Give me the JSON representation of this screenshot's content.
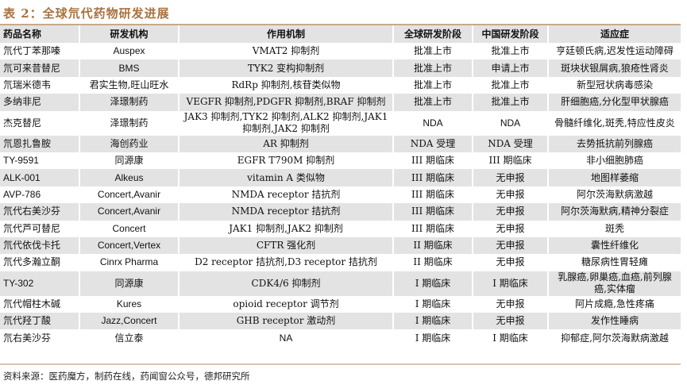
{
  "title": "表 2：全球氘代药物研发进展",
  "columns": [
    "药品名称",
    "研发机构",
    "作用机制",
    "全球研发阶段",
    "中国研发阶段",
    "适应症"
  ],
  "rows": [
    [
      "氘代丁苯那嗪",
      "Auspex",
      "VMAT2 抑制剂",
      "批准上市",
      "批准上市",
      "亨廷顿氏病,迟发性运动障碍"
    ],
    [
      "氘可来昔替尼",
      "BMS",
      "TYK2 变构抑制剂",
      "批准上市",
      "申请上市",
      "斑块状银屑病,狼疮性肾炎"
    ],
    [
      "氘瑞米德韦",
      "君实生物,旺山旺水",
      "RdRp 抑制剂,核苷类似物",
      "批准上市",
      "批准上市",
      "新型冠状病毒感染"
    ],
    [
      "多纳非尼",
      "泽璟制药",
      "VEGFR 抑制剂,PDGFR 抑制剂,BRAF 抑制剂",
      "批准上市",
      "批准上市",
      "肝细胞癌,分化型甲状腺癌"
    ],
    [
      "杰克替尼",
      "泽璟制药",
      "JAK3 抑制剂,TYK2 抑制剂,ALK2 抑制剂,JAK1 抑制剂,JAK2 抑制剂",
      "NDA",
      "NDA",
      "骨髓纤维化,斑秃,特应性皮炎"
    ],
    [
      "氘恩扎鲁胺",
      "海创药业",
      "AR 抑制剂",
      "NDA 受理",
      "NDA 受理",
      "去势抵抗前列腺癌"
    ],
    [
      "TY-9591",
      "同源康",
      "EGFR T790M 抑制剂",
      "III 期临床",
      "III 期临床",
      "非小细胞肺癌"
    ],
    [
      "ALK-001",
      "Alkeus",
      "vitamin A 类似物",
      "III 期临床",
      "无申报",
      "地图样萎缩"
    ],
    [
      "AVP-786",
      "Concert,Avanir",
      "NMDA receptor 拮抗剂",
      "III 期临床",
      "无申报",
      "阿尔茨海默病激越"
    ],
    [
      "氘代右美沙芬",
      "Concert,Avanir",
      "NMDA receptor 拮抗剂",
      "III 期临床",
      "无申报",
      "阿尔茨海默病,精神分裂症"
    ],
    [
      "氘代芦可替尼",
      "Concert",
      "JAK1 抑制剂,JAK2 抑制剂",
      "III 期临床",
      "无申报",
      "斑秃"
    ],
    [
      "氘代依伐卡托",
      "Concert,Vertex",
      "CFTR 强化剂",
      "II 期临床",
      "无申报",
      "囊性纤维化"
    ],
    [
      "氘代多瀚立酮",
      "Cinrx Pharma",
      "D2 receptor 拮抗剂,D3 receptor 拮抗剂",
      "II 期临床",
      "无申报",
      "糖尿病性胃轻瘫"
    ],
    [
      "TY-302",
      "同源康",
      "CDK4/6 抑制剂",
      "I 期临床",
      "I 期临床",
      "乳腺癌,卵巢癌,血癌,前列腺癌,实体瘤"
    ],
    [
      "氘代帽柱木碱",
      "Kures",
      "opioid receptor 调节剂",
      "I 期临床",
      "无申报",
      "阿片成瘾,急性疼痛"
    ],
    [
      "氘代羟丁酸",
      "Jazz,Concert",
      "GHB receptor 激动剂",
      "I 期临床",
      "无申报",
      "发作性睡病"
    ],
    [
      "氘右美沙芬",
      "信立泰",
      "NA",
      "I 期临床",
      "I 期临床",
      "抑郁症,阿尔茨海默病激越"
    ]
  ],
  "source": "资料来源：医药魔方，制药在线，药闻窗公众号，德邦研究所"
}
